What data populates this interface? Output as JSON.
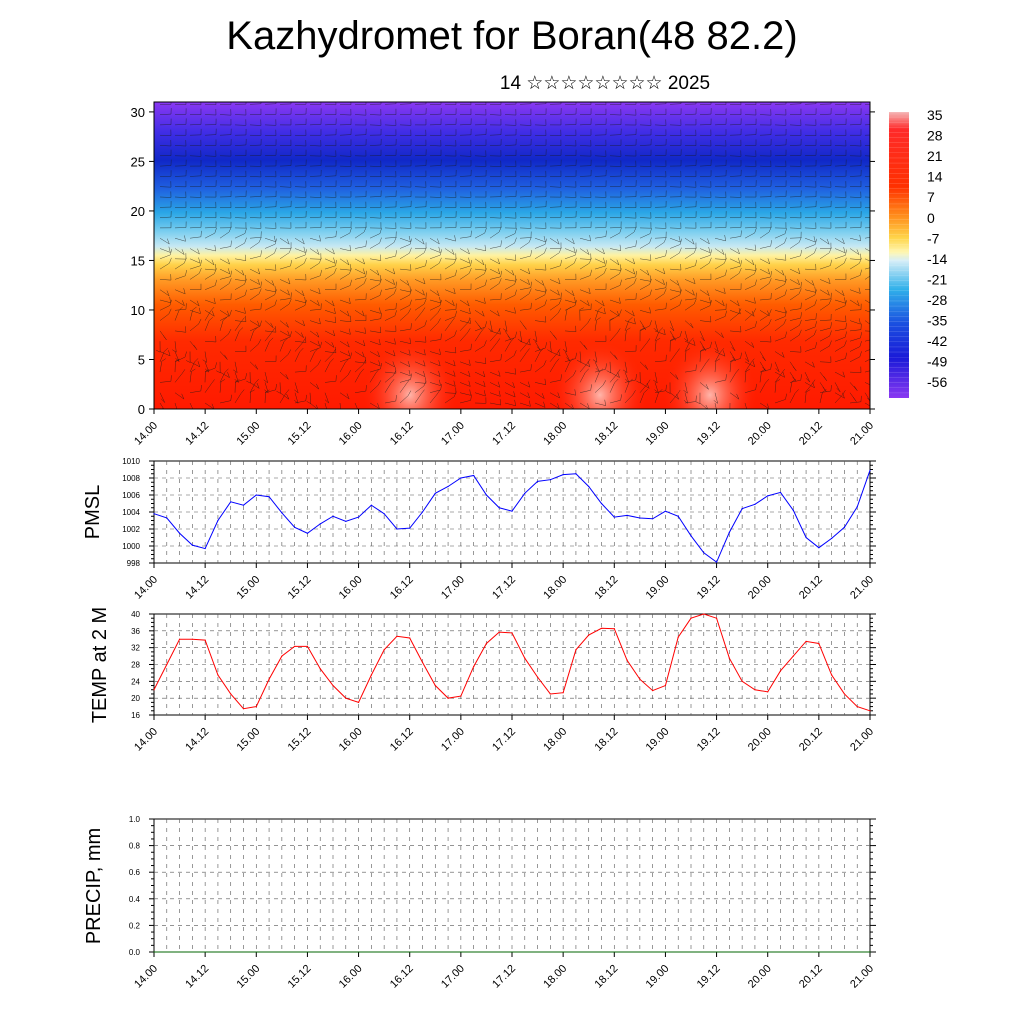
{
  "title": "Kazhydromet for Boran(48 82.2)",
  "subtitle": "14 ☆☆☆☆☆☆☆☆ 2025",
  "time_ticks": [
    "14.00",
    "14.12",
    "15.00",
    "15.12",
    "16.00",
    "16.12",
    "17.00",
    "17.12",
    "18.00",
    "18.12",
    "19.00",
    "19.12",
    "20.00",
    "20.12",
    "21.00"
  ],
  "chart_data": [
    {
      "type": "heatmap",
      "name": "cross-section",
      "x": [
        "14.00",
        "14.12",
        "15.00",
        "15.12",
        "16.00",
        "16.12",
        "17.00",
        "17.12",
        "18.00",
        "18.12",
        "19.00",
        "19.12",
        "20.00",
        "20.12",
        "21.00"
      ],
      "y_ticks": [
        0,
        5,
        10,
        15,
        20,
        25,
        30
      ],
      "ylim": [
        0,
        31
      ],
      "colorbar_labels": [
        "35",
        "28",
        "21",
        "14",
        "7",
        "0",
        "-7",
        "-14",
        "-21",
        "-28",
        "-35",
        "-42",
        "-49",
        "-56"
      ],
      "colorbar_range": [
        -60,
        38
      ],
      "colors": {
        "hot": "#ff0000",
        "warm": "#ff8c1a",
        "yellow": "#ffe050",
        "lightblue": "#bde6f5",
        "cyan": "#30b0e8",
        "blue": "#1030d0",
        "violet": "#7a2ff0"
      },
      "overlay": "wind barbs"
    },
    {
      "type": "line",
      "ylabel": "PMSL",
      "ylim": [
        998,
        1010
      ],
      "y_ticks": [
        "998",
        "1000",
        "1002",
        "1004",
        "1006",
        "1008",
        "1010"
      ],
      "x_ticks": [
        "14.00",
        "14.12",
        "15.00",
        "15.12",
        "16.00",
        "16.12",
        "17.00",
        "17.12",
        "18.00",
        "18.12",
        "19.00",
        "19.12",
        "20.00",
        "20.12",
        "21.00"
      ],
      "color": "#0000ff",
      "x_hours": [
        0,
        3,
        6,
        9,
        12,
        15,
        18,
        21,
        24,
        27,
        30,
        33,
        36,
        39,
        42,
        45,
        48,
        51,
        54,
        57,
        60,
        63,
        66,
        69,
        72,
        75,
        78,
        81,
        84,
        87,
        90,
        93,
        96,
        99,
        102,
        105,
        108,
        111,
        114,
        117,
        120,
        123,
        126,
        129,
        132,
        135,
        138,
        141,
        144,
        147,
        150,
        153,
        156,
        159,
        162,
        165,
        168
      ],
      "values": [
        1003.8,
        1003.3,
        1001.5,
        1000.1,
        999.7,
        1003.0,
        1005.2,
        1004.8,
        1006.0,
        1005.8,
        1003.9,
        1002.2,
        1001.5,
        1002.6,
        1003.5,
        1002.9,
        1003.4,
        1004.8,
        1003.8,
        1002.0,
        1002.1,
        1004.0,
        1006.2,
        1007.0,
        1008.0,
        1008.3,
        1006.0,
        1004.5,
        1004.1,
        1006.2,
        1007.6,
        1007.8,
        1008.4,
        1008.5,
        1007.0,
        1005.0,
        1003.4,
        1003.6,
        1003.3,
        1003.2,
        1004.1,
        1003.5,
        1001.2,
        999.2,
        998.1,
        1001.6,
        1004.4,
        1004.9,
        1005.9,
        1006.3,
        1004.2,
        1001.0,
        999.8,
        1000.9,
        1002.2,
        1004.6,
        1008.9
      ]
    },
    {
      "type": "line",
      "ylabel": "TEMP at 2 M",
      "ylim": [
        16,
        40
      ],
      "y_ticks": [
        "16",
        "20",
        "24",
        "28",
        "32",
        "36",
        "40"
      ],
      "x_ticks": [
        "14.00",
        "14.12",
        "15.00",
        "15.12",
        "16.00",
        "16.12",
        "17.00",
        "17.12",
        "18.00",
        "18.12",
        "19.00",
        "19.12",
        "20.00",
        "20.12",
        "21.00"
      ],
      "color": "#ff0000",
      "x_hours": [
        0,
        3,
        6,
        9,
        12,
        15,
        18,
        21,
        24,
        27,
        30,
        33,
        36,
        39,
        42,
        45,
        48,
        51,
        54,
        57,
        60,
        63,
        66,
        69,
        72,
        75,
        78,
        81,
        84,
        87,
        90,
        93,
        96,
        99,
        102,
        105,
        108,
        111,
        114,
        117,
        120,
        123,
        126,
        129,
        132,
        135,
        138,
        141,
        144,
        147,
        150,
        153,
        156,
        159,
        162,
        165,
        168
      ],
      "values": [
        22.0,
        28.0,
        34.0,
        34.0,
        33.8,
        25.5,
        21.0,
        17.5,
        18.0,
        24.5,
        30.0,
        32.3,
        32.3,
        27.0,
        23.0,
        20.0,
        19.0,
        25.5,
        31.5,
        34.7,
        34.3,
        28.5,
        23.0,
        20.0,
        20.5,
        27.5,
        33.0,
        35.7,
        35.5,
        29.5,
        25.0,
        21.0,
        21.3,
        31.5,
        35.0,
        36.6,
        36.5,
        29.0,
        24.5,
        21.8,
        23.0,
        34.5,
        39.0,
        40.0,
        39.0,
        29.5,
        24.0,
        22.0,
        21.5,
        26.5,
        30.0,
        33.5,
        33.0,
        25.5,
        21.0,
        18.0,
        17.0
      ]
    },
    {
      "type": "line",
      "ylabel": "PRECIP, mm",
      "ylim": [
        0,
        1
      ],
      "y_ticks": [
        "0.0",
        "0.2",
        "0.4",
        "0.6",
        "0.8",
        "1.0"
      ],
      "x_ticks": [
        "14.00",
        "14.12",
        "15.00",
        "15.12",
        "16.00",
        "16.12",
        "17.00",
        "17.12",
        "18.00",
        "18.12",
        "19.00",
        "19.12",
        "20.00",
        "20.12",
        "21.00"
      ],
      "color": "#006400",
      "x_hours": [
        0,
        168
      ],
      "values": [
        0,
        0
      ]
    }
  ]
}
